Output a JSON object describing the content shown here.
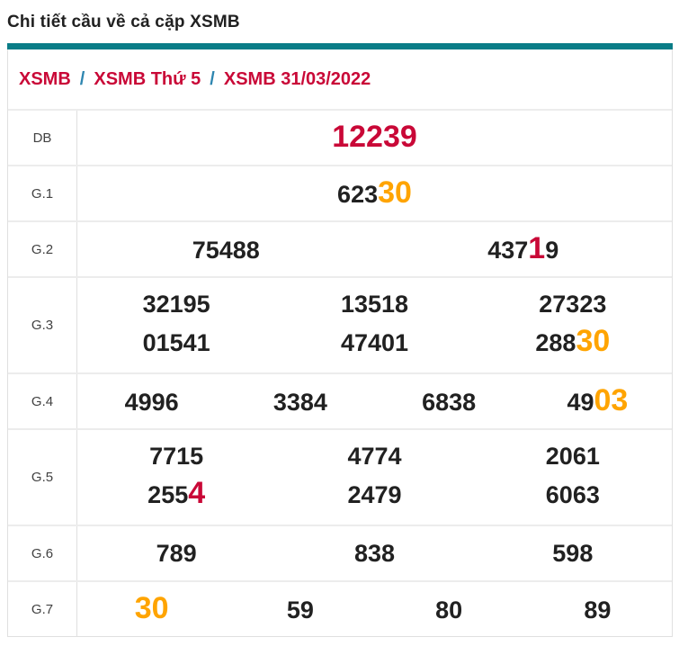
{
  "page_title": "Chi tiết cầu về cả cặp XSMB",
  "breadcrumb": {
    "separator": "/",
    "items": [
      {
        "label": "XSMB"
      },
      {
        "label": "XSMB Thứ 5"
      },
      {
        "label": "XSMB 31/03/2022"
      }
    ]
  },
  "colors": {
    "accent_teal": "#0a7d87",
    "crimson": "#c90837",
    "orange": "#ffa400",
    "digit_black": "#212121",
    "border_gray": "#e0e0e0",
    "breadcrumb_separator_blue": "#2e86b0"
  },
  "prize_table": {
    "rows": [
      {
        "label": "DB",
        "lines": [
          [
            [
              {
                "t": "12239",
                "c": "red",
                "big": true
              }
            ]
          ]
        ]
      },
      {
        "label": "G.1",
        "lines": [
          [
            [
              {
                "t": "623"
              },
              {
                "t": "30",
                "c": "orange",
                "big": true
              }
            ]
          ]
        ]
      },
      {
        "label": "G.2",
        "lines": [
          [
            [
              {
                "t": "75488"
              }
            ],
            [
              {
                "t": "437"
              },
              {
                "t": "1",
                "c": "red",
                "big": true
              },
              {
                "t": "9"
              }
            ]
          ]
        ]
      },
      {
        "label": "G.3",
        "lines": [
          [
            [
              {
                "t": "32195"
              }
            ],
            [
              {
                "t": "13518"
              }
            ],
            [
              {
                "t": "27323"
              }
            ]
          ],
          [
            [
              {
                "t": "01541"
              }
            ],
            [
              {
                "t": "47401"
              }
            ],
            [
              {
                "t": "288"
              },
              {
                "t": "30",
                "c": "orange",
                "big": true
              }
            ]
          ]
        ]
      },
      {
        "label": "G.4",
        "lines": [
          [
            [
              {
                "t": "4996"
              }
            ],
            [
              {
                "t": "3384"
              }
            ],
            [
              {
                "t": "6838"
              }
            ],
            [
              {
                "t": "49"
              },
              {
                "t": "03",
                "c": "orange",
                "big": true
              }
            ]
          ]
        ]
      },
      {
        "label": "G.5",
        "lines": [
          [
            [
              {
                "t": "7715"
              }
            ],
            [
              {
                "t": "4774"
              }
            ],
            [
              {
                "t": "2061"
              }
            ]
          ],
          [
            [
              {
                "t": "255"
              },
              {
                "t": "4",
                "c": "red",
                "big": true
              }
            ],
            [
              {
                "t": "2479"
              }
            ],
            [
              {
                "t": "6063"
              }
            ]
          ]
        ]
      },
      {
        "label": "G.6",
        "lines": [
          [
            [
              {
                "t": "789"
              }
            ],
            [
              {
                "t": "838"
              }
            ],
            [
              {
                "t": "598"
              }
            ]
          ]
        ]
      },
      {
        "label": "G.7",
        "lines": [
          [
            [
              {
                "t": "30",
                "c": "orange",
                "big": true
              }
            ],
            [
              {
                "t": "59"
              }
            ],
            [
              {
                "t": "80"
              }
            ],
            [
              {
                "t": "89"
              }
            ]
          ]
        ]
      }
    ]
  }
}
